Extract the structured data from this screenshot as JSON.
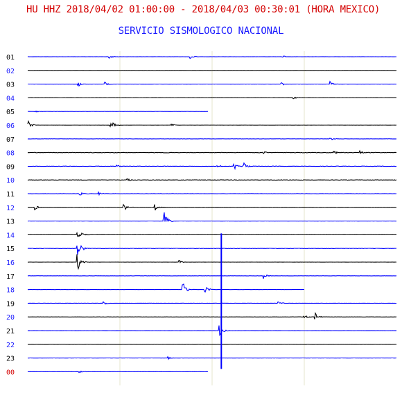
{
  "header": {
    "title": "HU HHZ 2018/04/02 01:00:00 - 2018/04/03 00:30:01 (HORA MEXICO)",
    "subtitle": "SERVICIO SISMOLOGICO NACIONAL"
  },
  "colors": {
    "title": "#d40000",
    "subtitle": "#1a1aff",
    "trace_blue": "#0000ff",
    "trace_black": "#000000",
    "label_black": "#000000",
    "label_blue": "#1a1aff",
    "label_red": "#d40000",
    "grid": "#e6e6cc"
  },
  "chart_data": {
    "type": "line",
    "description_free": true,
    "rows": [
      {
        "hour": "01",
        "color": "blue",
        "label_color": "black",
        "events": [
          {
            "t": 0.22,
            "a": 3
          },
          {
            "t": 0.44,
            "a": 3
          },
          {
            "t": 0.69,
            "a": 2
          }
        ]
      },
      {
        "hour": "02",
        "color": "black",
        "label_color": "blue",
        "events": []
      },
      {
        "hour": "03",
        "color": "blue",
        "label_color": "black",
        "events": [
          {
            "t": 0.21,
            "a": 3
          },
          {
            "t": 0.136,
            "a": 4
          },
          {
            "t": 0.685,
            "a": 3
          },
          {
            "t": 0.82,
            "a": 4
          }
        ]
      },
      {
        "hour": "04",
        "color": "black",
        "label_color": "blue",
        "events": [
          {
            "t": 0.72,
            "a": 2
          }
        ]
      },
      {
        "hour": "05",
        "color": "blue",
        "label_color": "black",
        "end": 0.49,
        "events": [
          {
            "t": 0.02,
            "a": 2
          }
        ]
      },
      {
        "hour": "06",
        "color": "black",
        "label_color": "blue",
        "events": [
          {
            "t": 0.0,
            "a": 9
          },
          {
            "t": 0.225,
            "a": 8
          },
          {
            "t": 0.39,
            "a": 3
          }
        ]
      },
      {
        "hour": "07",
        "color": "blue",
        "label_color": "black",
        "events": [
          {
            "t": 0.82,
            "a": 2
          }
        ]
      },
      {
        "hour": "08",
        "color": "black",
        "label_color": "blue",
        "noise": 0.7,
        "events": [
          {
            "t": 0.64,
            "a": 3
          },
          {
            "t": 0.83,
            "a": 3
          },
          {
            "t": 0.9,
            "a": 4
          }
        ]
      },
      {
        "hour": "09",
        "color": "blue",
        "label_color": "black",
        "noise": 0.6,
        "events": [
          {
            "t": 0.24,
            "a": 3
          },
          {
            "t": 0.515,
            "a": 4
          },
          {
            "t": 0.56,
            "a": 5
          },
          {
            "t": 0.585,
            "a": 6
          }
        ]
      },
      {
        "hour": "10",
        "color": "black",
        "label_color": "blue",
        "noise": 0.6,
        "events": [
          {
            "t": 0.27,
            "a": 3
          }
        ]
      },
      {
        "hour": "11",
        "color": "blue",
        "label_color": "black",
        "noise": 0.5,
        "events": [
          {
            "t": 0.14,
            "a": 4
          },
          {
            "t": 0.19,
            "a": 3
          }
        ]
      },
      {
        "hour": "12",
        "color": "black",
        "label_color": "blue",
        "noise": 0.4,
        "events": [
          {
            "t": 0.02,
            "a": 4
          },
          {
            "t": 0.26,
            "a": 6
          },
          {
            "t": 0.345,
            "a": 5
          }
        ]
      },
      {
        "hour": "13",
        "color": "blue",
        "label_color": "black",
        "events": [
          {
            "t": 0.37,
            "a": 14
          }
        ]
      },
      {
        "hour": "14",
        "color": "black",
        "label_color": "blue",
        "events": [
          {
            "t": 0.135,
            "a": 14
          }
        ]
      },
      {
        "hour": "15",
        "color": "blue",
        "label_color": "black",
        "noise": 0.5,
        "events": [
          {
            "t": 0.135,
            "a": 18
          }
        ]
      },
      {
        "hour": "16",
        "color": "black",
        "label_color": "blue",
        "events": [
          {
            "t": 0.135,
            "a": 14
          },
          {
            "t": 0.41,
            "a": 3
          }
        ]
      },
      {
        "hour": "17",
        "color": "blue",
        "label_color": "black",
        "events": [
          {
            "t": 0.64,
            "a": 4
          }
        ]
      },
      {
        "hour": "18",
        "color": "blue",
        "label_color": "blue",
        "end": 0.75,
        "events": [
          {
            "t": 0.42,
            "a": 14
          },
          {
            "t": 0.48,
            "a": 8
          }
        ]
      },
      {
        "hour": "19",
        "color": "blue",
        "label_color": "black",
        "events": [
          {
            "t": 0.205,
            "a": 4
          },
          {
            "t": 0.68,
            "a": 3
          }
        ]
      },
      {
        "hour": "20",
        "color": "black",
        "label_color": "blue",
        "events": [
          {
            "t": 0.75,
            "a": 3
          },
          {
            "t": 0.78,
            "a": 6
          }
        ]
      },
      {
        "hour": "21",
        "color": "blue",
        "label_color": "black",
        "events": [
          {
            "t": 0.52,
            "a": 10
          }
        ]
      },
      {
        "hour": "22",
        "color": "black",
        "label_color": "blue",
        "events": []
      },
      {
        "hour": "23",
        "color": "blue",
        "label_color": "black",
        "events": [
          {
            "t": 0.38,
            "a": 2
          }
        ]
      },
      {
        "hour": "00",
        "color": "blue",
        "label_color": "red",
        "end": 0.49,
        "events": [
          {
            "t": 0.14,
            "a": 2
          }
        ]
      }
    ],
    "big_spike": {
      "t": 0.525,
      "from_hour": "14",
      "to_hour": "00"
    },
    "grid_lines_t": [
      0.25,
      0.5,
      0.75
    ]
  }
}
